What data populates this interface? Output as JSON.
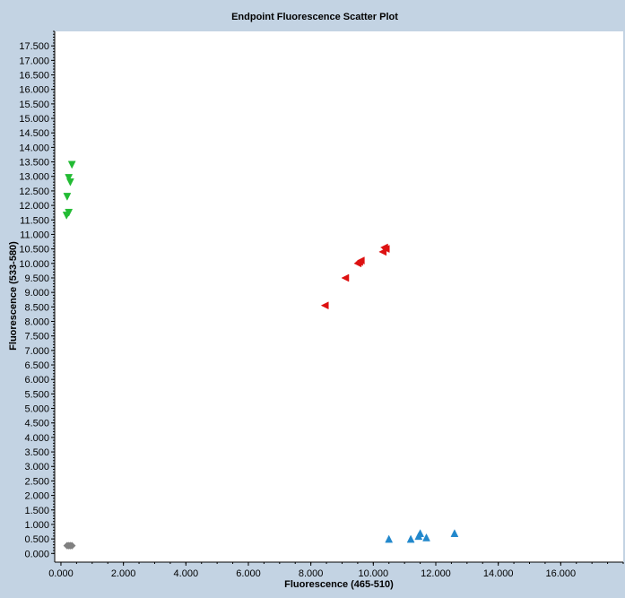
{
  "chart_data": {
    "type": "scatter",
    "title": "Endpoint Fluorescence Scatter Plot",
    "xlabel": "Fluorescence (465-510)",
    "ylabel": "Fluorescence (533-580)",
    "xlim": [
      -0.2,
      18.0
    ],
    "ylim": [
      -0.3,
      18.0
    ],
    "x_ticks": [
      0,
      2,
      4,
      6,
      8,
      10,
      12,
      14,
      16
    ],
    "x_tick_labels": [
      "0.000",
      "2.000",
      "4.000",
      "6.000",
      "8.000",
      "10.000",
      "12.000",
      "14.000",
      "16.000"
    ],
    "y_ticks": [
      0,
      0.5,
      1,
      1.5,
      2,
      2.5,
      3,
      3.5,
      4,
      4.5,
      5,
      5.5,
      6,
      6.5,
      7,
      7.5,
      8,
      8.5,
      9,
      9.5,
      10,
      10.5,
      11,
      11.5,
      12,
      12.5,
      13,
      13.5,
      14,
      14.5,
      15,
      15.5,
      16,
      16.5,
      17,
      17.5
    ],
    "y_tick_labels": [
      "0.000",
      "0.500",
      "1.000",
      "1.500",
      "2.000",
      "2.500",
      "3.000",
      "3.500",
      "4.000",
      "4.500",
      "5.000",
      "5.500",
      "6.000",
      "6.500",
      "7.000",
      "7.500",
      "8.000",
      "8.500",
      "9.000",
      "9.500",
      "10.000",
      "10.500",
      "11.000",
      "11.500",
      "12.000",
      "12.500",
      "13.000",
      "13.500",
      "14.000",
      "14.500",
      "15.000",
      "15.500",
      "16.000",
      "16.500",
      "17.000",
      "17.500"
    ],
    "grid": false,
    "series": [
      {
        "marker": "triangle-down",
        "color": "#22bb33",
        "points": [
          [
            0.35,
            13.4
          ],
          [
            0.25,
            12.95
          ],
          [
            0.3,
            12.8
          ],
          [
            0.2,
            12.3
          ],
          [
            0.25,
            11.75
          ],
          [
            0.18,
            11.65
          ]
        ]
      },
      {
        "marker": "triangle-left",
        "color": "#dd1111",
        "points": [
          [
            10.4,
            10.5
          ],
          [
            10.3,
            10.4
          ],
          [
            10.35,
            10.55
          ],
          [
            9.6,
            10.1
          ],
          [
            9.5,
            10.0
          ],
          [
            9.55,
            10.05
          ],
          [
            9.1,
            9.5
          ],
          [
            8.45,
            8.55
          ]
        ]
      },
      {
        "marker": "triangle-up",
        "color": "#2288cc",
        "points": [
          [
            12.6,
            0.7
          ],
          [
            11.5,
            0.7
          ],
          [
            11.45,
            0.6
          ],
          [
            11.7,
            0.55
          ],
          [
            11.2,
            0.5
          ],
          [
            10.5,
            0.5
          ]
        ]
      },
      {
        "marker": "diamond",
        "color": "#808080",
        "points": [
          [
            0.2,
            0.27
          ],
          [
            0.25,
            0.27
          ],
          [
            0.3,
            0.27
          ],
          [
            0.35,
            0.27
          ]
        ]
      }
    ]
  }
}
